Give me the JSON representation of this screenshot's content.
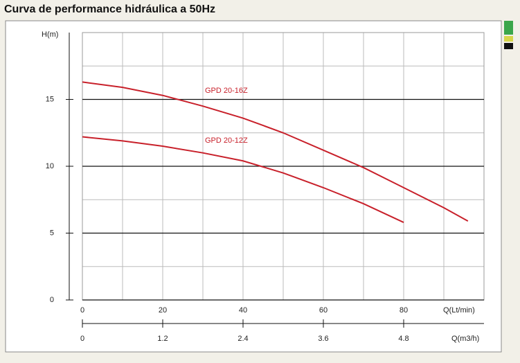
{
  "chart_data": {
    "type": "line",
    "title": "Curva de performance hidráulica a 50Hz",
    "ylabel": "H(m)",
    "xlabel": "Q(Lt/min)",
    "x2label": "Q(m3/h)",
    "xlim": [
      0,
      100
    ],
    "ylim": [
      0,
      20
    ],
    "x2lim": [
      0,
      6
    ],
    "xticks": [
      0,
      20,
      40,
      60,
      80
    ],
    "yticks": [
      0,
      5,
      10,
      15
    ],
    "x2ticks": [
      0,
      1.2,
      2.4,
      3.6,
      4.8
    ],
    "xgrid": [
      10,
      20,
      30,
      40,
      50,
      60,
      70,
      80,
      90
    ],
    "ygrid": [
      2.5,
      7.5,
      12.5,
      17.5
    ],
    "series": [
      {
        "name": "GPD 20-16Z",
        "color": "#c8202a",
        "x": [
          0,
          10,
          20,
          30,
          40,
          50,
          60,
          70,
          80,
          90,
          96
        ],
        "values": [
          16.3,
          15.9,
          15.3,
          14.5,
          13.6,
          12.5,
          11.2,
          9.9,
          8.4,
          6.9,
          5.9
        ]
      },
      {
        "name": "GPD 20-12Z",
        "color": "#c8202a",
        "x": [
          0,
          10,
          20,
          30,
          40,
          50,
          60,
          70,
          80
        ],
        "values": [
          12.2,
          11.9,
          11.5,
          11.0,
          10.4,
          9.5,
          8.4,
          7.2,
          5.8
        ]
      }
    ]
  }
}
